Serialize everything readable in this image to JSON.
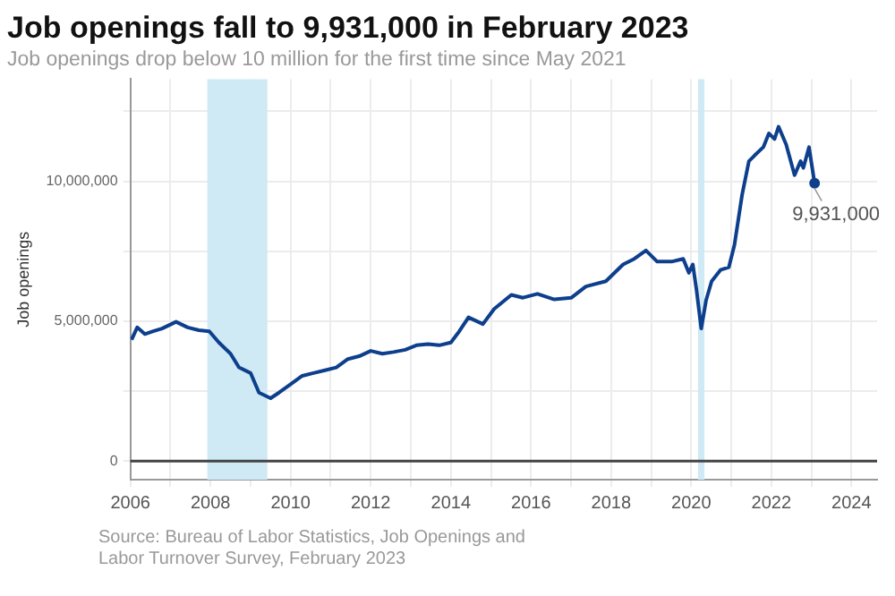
{
  "chart_data": {
    "type": "line",
    "title": "Job openings fall to 9,931,000 in February 2023",
    "subtitle": "Job openings drop below 10 million for the first time since May 2021",
    "ylabel": "Job openings",
    "x": [
      2006.03,
      2006.17,
      2006.36,
      2006.57,
      2006.79,
      2007.14,
      2007.43,
      2007.71,
      2007.97,
      2008.21,
      2008.5,
      2008.71,
      2009.0,
      2009.21,
      2009.5,
      2009.71,
      2010.0,
      2010.29,
      2010.57,
      2010.86,
      2011.14,
      2011.43,
      2011.71,
      2012.0,
      2012.29,
      2012.57,
      2012.86,
      2013.14,
      2013.43,
      2013.71,
      2014.0,
      2014.21,
      2014.44,
      2014.8,
      2015.08,
      2015.51,
      2015.8,
      2016.16,
      2016.58,
      2017.01,
      2017.37,
      2017.87,
      2018.3,
      2018.58,
      2018.87,
      2019.15,
      2019.51,
      2019.8,
      2019.94,
      2020.04,
      2020.13,
      2020.25,
      2020.37,
      2020.51,
      2020.73,
      2020.94,
      2021.08,
      2021.27,
      2021.44,
      2021.58,
      2021.8,
      2021.94,
      2022.08,
      2022.18,
      2022.37,
      2022.58,
      2022.73,
      2022.8,
      2022.94,
      2023.08
    ],
    "series": [
      {
        "color": "#0d3f8c",
        "values": [
          4340000,
          4780000,
          4540000,
          4640000,
          4740000,
          4980000,
          4780000,
          4680000,
          4640000,
          4240000,
          3840000,
          3350000,
          3150000,
          2450000,
          2250000,
          2450000,
          2750000,
          3050000,
          3150000,
          3250000,
          3350000,
          3650000,
          3750000,
          3940000,
          3840000,
          3900000,
          3980000,
          4140000,
          4180000,
          4140000,
          4240000,
          4640000,
          5140000,
          4900000,
          5440000,
          5940000,
          5840000,
          5980000,
          5780000,
          5840000,
          6240000,
          6430000,
          7030000,
          7230000,
          7530000,
          7130000,
          7130000,
          7230000,
          6730000,
          7030000,
          6140000,
          4740000,
          5740000,
          6430000,
          6830000,
          6930000,
          7730000,
          9520000,
          10720000,
          10920000,
          11220000,
          11710000,
          11510000,
          11950000,
          11310000,
          10220000,
          10720000,
          10480000,
          11220000,
          9931000
        ]
      }
    ],
    "xlim": [
      2006,
      2024.64
    ],
    "xticks": [
      2006,
      {
        "value": 2007,
        "label": null
      },
      2008,
      {
        "value": 2009,
        "label": null
      },
      2010,
      {
        "value": 2011,
        "label": null
      },
      2012,
      {
        "value": 2013,
        "label": null
      },
      2014,
      {
        "value": 2015,
        "label": null
      },
      2016,
      {
        "value": 2017,
        "label": null
      },
      2018,
      {
        "value": 2019,
        "label": null
      },
      2020,
      {
        "value": 2021,
        "label": null
      },
      2022,
      {
        "value": 2023,
        "label": null
      },
      2024
    ],
    "ylim": [
      -660000,
      13650000
    ],
    "yticks": [
      0,
      {
        "value": 2500000,
        "label": null
      },
      {
        "value": 5000000,
        "label": "5,000,000"
      },
      {
        "value": 7500000,
        "label": null
      },
      {
        "value": 10000000,
        "label": "10,000,000"
      },
      {
        "value": 12500000,
        "label": null
      }
    ],
    "bands": [
      {
        "axis": "x",
        "from": 2007.92,
        "to": 2009.42,
        "color": "#cfe9f5"
      },
      {
        "axis": "x",
        "from": 2020.17,
        "to": 2020.33,
        "color": "#cfe9f5"
      }
    ],
    "ref_lines": [
      {
        "axis": "y",
        "value": 0,
        "color": "#444444"
      }
    ],
    "annotations": [
      {
        "text": "9,931,000",
        "x": 2023.08,
        "y": 9931000
      },
      "Source: Bureau of Labor Statistics, Job Openings and Labor Turnover Survey, February 2023"
    ],
    "grid": true,
    "legend": false,
    "marker": "none",
    "line_style": "solid"
  }
}
